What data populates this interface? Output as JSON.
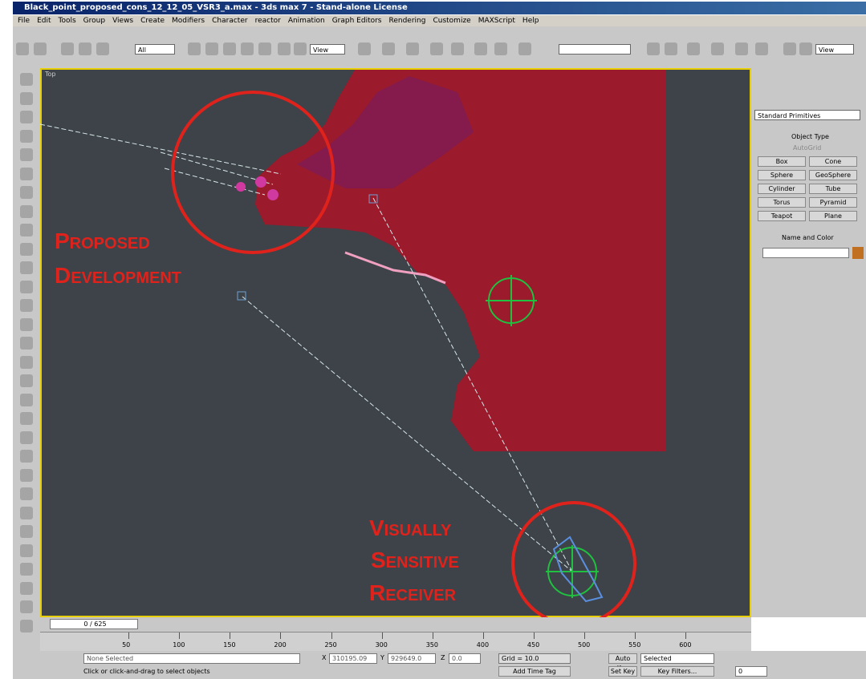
{
  "window": {
    "title": "Black_point_proposed_cons_12_12_05_VSR3_a.max - 3ds max 7 - Stand-alone License"
  },
  "menu": [
    "File",
    "Edit",
    "Tools",
    "Group",
    "Views",
    "Create",
    "Modifiers",
    "Character",
    "reactor",
    "Animation",
    "Graph Editors",
    "Rendering",
    "Customize",
    "MAXScript",
    "Help"
  ],
  "toolbar": {
    "selection_filter": "All",
    "reference_coord": "View",
    "viewport_select": "View"
  },
  "viewport": {
    "label": "Top",
    "annotations": [
      {
        "lines": [
          "Proposed",
          "Development"
        ]
      },
      {
        "lines": [
          "Visually",
          "Sensitive",
          "Receiver"
        ]
      }
    ]
  },
  "command_panel": {
    "dropdown": "Standard Primitives",
    "object_type": "Object Type",
    "autogrid": "AutoGrid",
    "buttons": [
      "Box",
      "Cone",
      "Sphere",
      "GeoSphere",
      "Cylinder",
      "Tube",
      "Torus",
      "Pyramid",
      "Teapot",
      "Plane"
    ],
    "name_and_color": "Name and Color"
  },
  "timeline": {
    "slider": "0 / 625",
    "ruler": [
      50,
      100,
      150,
      200,
      250,
      300,
      350,
      400,
      450,
      500,
      550,
      600
    ]
  },
  "status": {
    "selection": "None Selected",
    "prompt": "Click or click-and-drag to select objects",
    "x_label": "X",
    "x_value": "310195.09",
    "y_label": "Y",
    "y_value": "929649.0",
    "z_label": "Z",
    "z_value": "0.0",
    "grid": "Grid = 10.0",
    "add_time_tag": "Add Time Tag",
    "auto_key": "Auto Key",
    "key_mode": "Selected",
    "set_key": "Set Key",
    "key_filters": "Key Filters...",
    "frame": "0"
  }
}
